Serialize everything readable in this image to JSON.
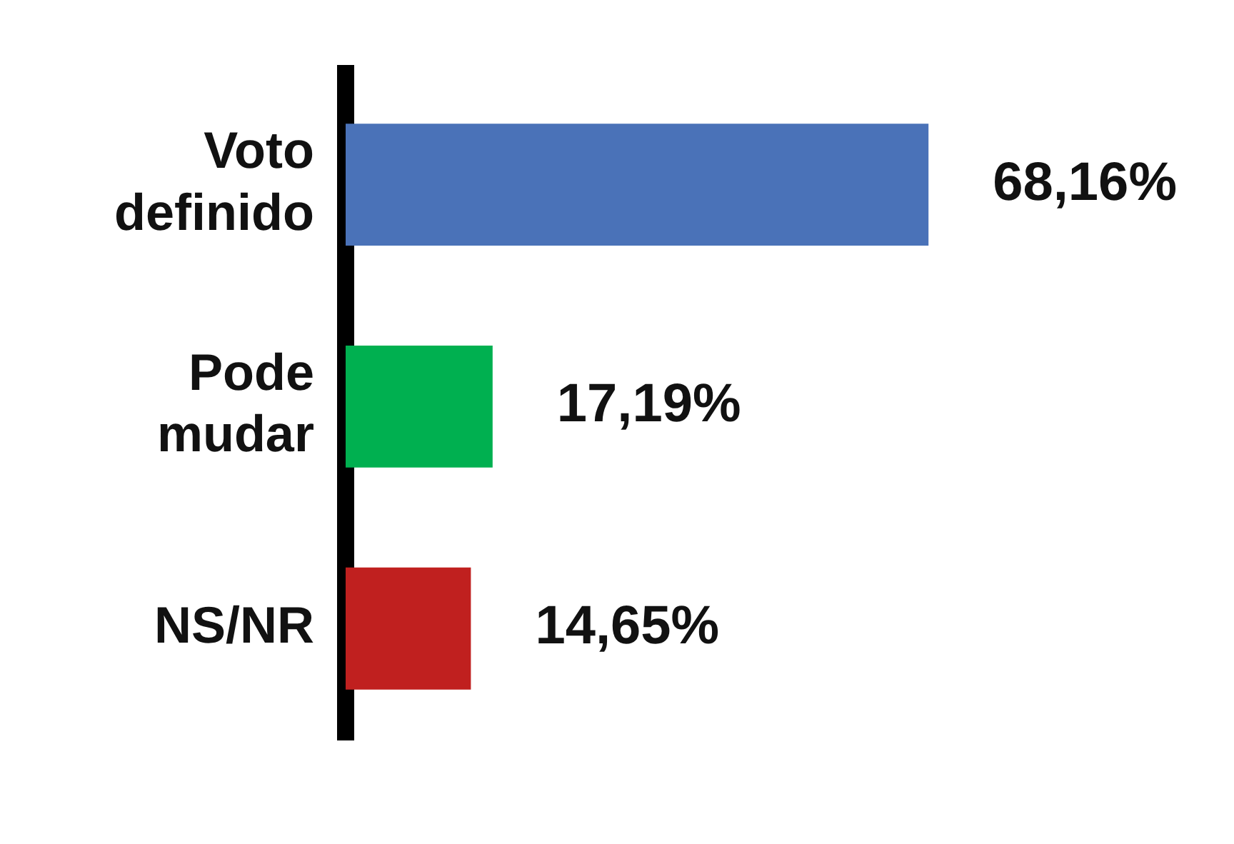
{
  "chart_data": {
    "type": "bar",
    "orientation": "horizontal",
    "categories": [
      "Voto definido",
      "Pode mudar",
      "NS/NR"
    ],
    "values": [
      68.16,
      17.19,
      14.65
    ],
    "colors": [
      "#4a72b8",
      "#00b050",
      "#c0201f"
    ],
    "value_labels": [
      "68,16%",
      "17,19%",
      "14,65%"
    ],
    "legend": false
  }
}
